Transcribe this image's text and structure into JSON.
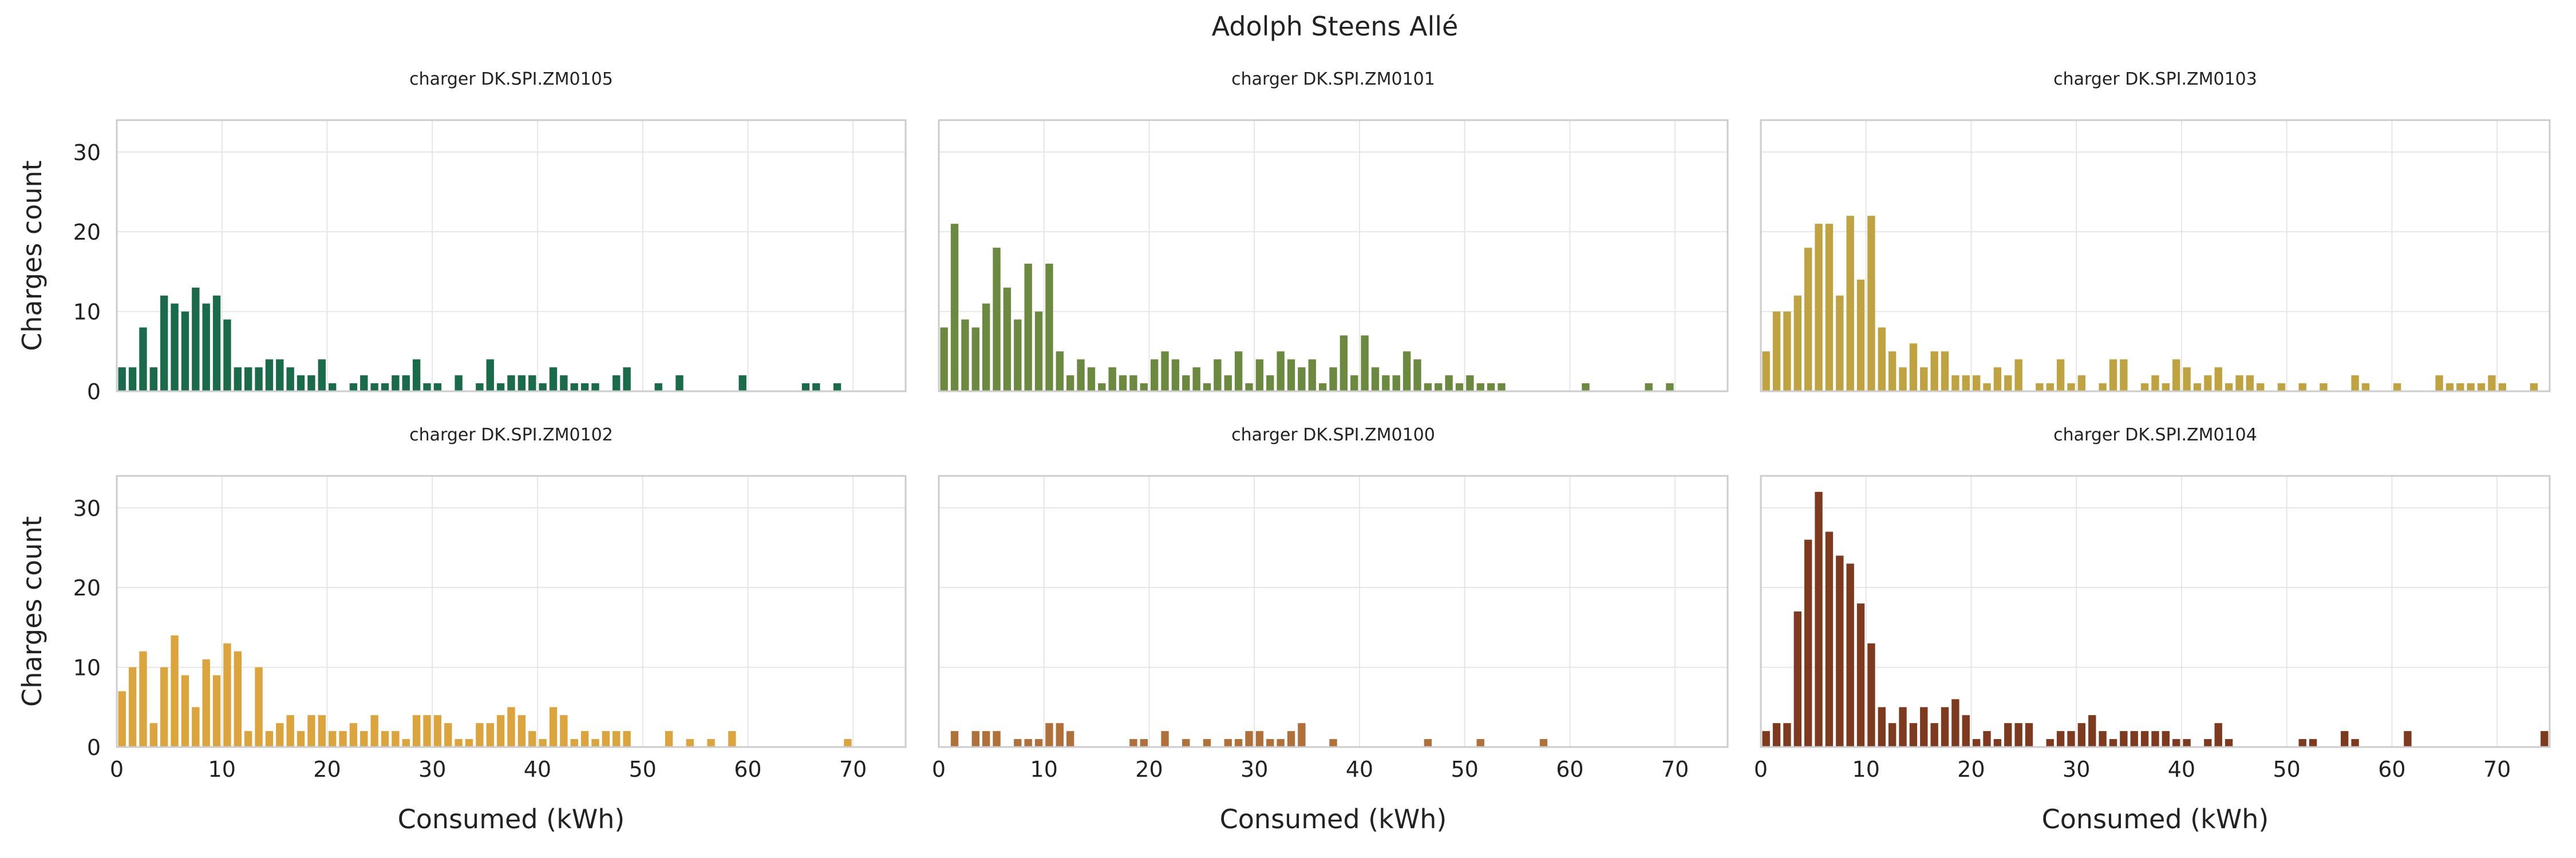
{
  "figure": {
    "title": "Adolph Steens Allé"
  },
  "axis_common": {
    "xlabel": "Consumed (kWh)",
    "ylabel": "Charges count",
    "xlim": [
      0,
      75
    ],
    "ylim": [
      0,
      34
    ],
    "xticks": [
      0,
      10,
      20,
      30,
      40,
      50,
      60,
      70
    ],
    "yticks": [
      0,
      10,
      20,
      30
    ],
    "bin_width": 1.0,
    "grid": true
  },
  "chart_data": [
    {
      "type": "bar",
      "title": "charger DK.SPI.ZM0105",
      "color": "#1a6b4c",
      "x": [
        0.5,
        1.5,
        2.5,
        3.5,
        4.5,
        5.5,
        6.5,
        7.5,
        8.5,
        9.5,
        10.5,
        11.5,
        12.5,
        13.5,
        14.5,
        15.5,
        16.5,
        17.5,
        18.5,
        19.5,
        20.5,
        22.5,
        23.5,
        24.5,
        25.5,
        26.5,
        27.5,
        28.5,
        29.5,
        30.5,
        32.5,
        34.5,
        35.5,
        36.5,
        37.5,
        38.5,
        39.5,
        40.5,
        41.5,
        42.5,
        43.5,
        44.5,
        45.5,
        47.5,
        48.5,
        51.5,
        53.5,
        59.5,
        65.5,
        66.5,
        68.5
      ],
      "values": [
        3,
        3,
        8,
        3,
        12,
        11,
        10,
        13,
        11,
        12,
        9,
        3,
        3,
        3,
        4,
        4,
        3,
        2,
        2,
        4,
        1,
        1,
        2,
        1,
        1,
        2,
        2,
        4,
        1,
        1,
        2,
        1,
        4,
        1,
        2,
        2,
        2,
        1,
        3,
        2,
        1,
        1,
        1,
        2,
        3,
        1,
        2,
        2,
        1,
        1,
        1
      ]
    },
    {
      "type": "bar",
      "title": "charger DK.SPI.ZM0101",
      "color": "#6b8a3f",
      "x": [
        0.5,
        1.5,
        2.5,
        3.5,
        4.5,
        5.5,
        6.5,
        7.5,
        8.5,
        9.5,
        10.5,
        11.5,
        12.5,
        13.5,
        14.5,
        15.5,
        16.5,
        17.5,
        18.5,
        19.5,
        20.5,
        21.5,
        22.5,
        23.5,
        24.5,
        25.5,
        26.5,
        27.5,
        28.5,
        29.5,
        30.5,
        31.5,
        32.5,
        33.5,
        34.5,
        35.5,
        36.5,
        37.5,
        38.5,
        39.5,
        40.5,
        41.5,
        42.5,
        43.5,
        44.5,
        45.5,
        46.5,
        47.5,
        48.5,
        49.5,
        50.5,
        51.5,
        52.5,
        53.5,
        61.5,
        67.5,
        69.5
      ],
      "values": [
        8,
        21,
        9,
        8,
        11,
        18,
        13,
        9,
        16,
        10,
        16,
        5,
        2,
        4,
        3,
        1,
        3,
        2,
        2,
        1,
        4,
        5,
        4,
        2,
        3,
        1,
        4,
        2,
        5,
        1,
        4,
        2,
        5,
        4,
        3,
        4,
        1,
        3,
        7,
        2,
        7,
        3,
        2,
        2,
        5,
        4,
        1,
        1,
        2,
        1,
        2,
        1,
        1,
        1,
        1,
        1,
        1
      ]
    },
    {
      "type": "bar",
      "title": "charger DK.SPI.ZM0103",
      "color": "#c0a341",
      "x": [
        0.5,
        1.5,
        2.5,
        3.5,
        4.5,
        5.5,
        6.5,
        7.5,
        8.5,
        9.5,
        10.5,
        11.5,
        12.5,
        13.5,
        14.5,
        15.5,
        16.5,
        17.5,
        18.5,
        19.5,
        20.5,
        21.5,
        22.5,
        23.5,
        24.5,
        25.5,
        26.5,
        27.5,
        28.5,
        29.5,
        30.5,
        31.5,
        32.5,
        33.5,
        34.5,
        35.5,
        36.5,
        37.5,
        38.5,
        39.5,
        40.5,
        41.5,
        42.5,
        43.5,
        44.5,
        45.5,
        46.5,
        47.5,
        48.5,
        49.5,
        50.5,
        51.5,
        52.5,
        53.5,
        54.5,
        55.5,
        56.5,
        57.5,
        58.5,
        59.5,
        60.5,
        61.5,
        62.5,
        63.5,
        64.5,
        65.5,
        66.5,
        67.5,
        68.5,
        69.5,
        70.5,
        71.5,
        72.5,
        73.5
      ],
      "values": [
        5,
        10,
        10,
        12,
        18,
        21,
        21,
        12,
        22,
        14,
        22,
        8,
        5,
        3,
        6,
        3,
        5,
        5,
        2,
        2,
        2,
        1,
        3,
        2,
        4,
        0,
        1,
        1,
        4,
        1,
        2,
        0,
        1,
        4,
        4,
        0,
        1,
        2,
        1,
        4,
        3,
        1,
        2,
        3,
        1,
        2,
        2,
        1,
        0,
        1,
        0,
        1,
        0,
        1,
        0,
        0,
        2,
        1,
        0,
        0,
        1,
        0,
        0,
        0,
        2,
        1,
        1,
        1,
        1,
        2,
        1,
        0,
        0,
        1
      ]
    },
    {
      "type": "bar",
      "title": "charger DK.SPI.ZM0102",
      "color": "#dba43c",
      "x": [
        0.5,
        1.5,
        2.5,
        3.5,
        4.5,
        5.5,
        6.5,
        7.5,
        8.5,
        9.5,
        10.5,
        11.5,
        12.5,
        13.5,
        14.5,
        15.5,
        16.5,
        17.5,
        18.5,
        19.5,
        20.5,
        21.5,
        22.5,
        23.5,
        24.5,
        25.5,
        26.5,
        27.5,
        28.5,
        29.5,
        30.5,
        31.5,
        32.5,
        33.5,
        34.5,
        35.5,
        36.5,
        37.5,
        38.5,
        39.5,
        40.5,
        41.5,
        42.5,
        43.5,
        44.5,
        45.5,
        46.5,
        47.5,
        48.5,
        52.5,
        54.5,
        56.5,
        58.5,
        69.5
      ],
      "values": [
        7,
        10,
        12,
        3,
        10,
        14,
        9,
        5,
        11,
        9,
        13,
        12,
        2,
        10,
        2,
        3,
        4,
        2,
        4,
        4,
        2,
        2,
        3,
        2,
        4,
        2,
        2,
        1,
        4,
        4,
        4,
        3,
        1,
        1,
        3,
        3,
        4,
        5,
        4,
        2,
        1,
        5,
        4,
        1,
        2,
        1,
        2,
        2,
        2,
        2,
        1,
        1,
        2,
        1
      ]
    },
    {
      "type": "bar",
      "title": "charger DK.SPI.ZM0100",
      "color": "#b0703a",
      "x": [
        1.5,
        3.5,
        4.5,
        5.5,
        7.5,
        8.5,
        9.5,
        10.5,
        11.5,
        12.5,
        18.5,
        19.5,
        21.5,
        23.5,
        25.5,
        27.5,
        28.5,
        29.5,
        30.5,
        31.5,
        32.5,
        33.5,
        34.5,
        37.5,
        46.5,
        51.5,
        57.5
      ],
      "values": [
        2,
        2,
        2,
        2,
        1,
        1,
        1,
        3,
        3,
        2,
        1,
        1,
        2,
        1,
        1,
        1,
        1,
        2,
        2,
        1,
        1,
        2,
        3,
        1,
        1,
        1,
        1
      ]
    },
    {
      "type": "bar",
      "title": "charger DK.SPI.ZM0104",
      "color": "#7e3a1f",
      "x": [
        0.5,
        1.5,
        2.5,
        3.5,
        4.5,
        5.5,
        6.5,
        7.5,
        8.5,
        9.5,
        10.5,
        11.5,
        12.5,
        13.5,
        14.5,
        15.5,
        16.5,
        17.5,
        18.5,
        19.5,
        20.5,
        21.5,
        22.5,
        23.5,
        24.5,
        25.5,
        26.5,
        27.5,
        28.5,
        29.5,
        30.5,
        31.5,
        32.5,
        33.5,
        34.5,
        35.5,
        36.5,
        37.5,
        38.5,
        39.5,
        40.5,
        41.5,
        42.5,
        43.5,
        44.5,
        45.5,
        46.5,
        47.5,
        48.5,
        49.5,
        50.5,
        51.5,
        52.5,
        53.5,
        54.5,
        55.5,
        56.5,
        57.5,
        58.5,
        59.5,
        60.5,
        61.5,
        62.5,
        63.5,
        64.5,
        65.5,
        66.5,
        67.5,
        68.5,
        69.5,
        70.5,
        71.5,
        72.5,
        73.5,
        74.5
      ],
      "values": [
        2,
        3,
        3,
        17,
        26,
        32,
        27,
        24,
        23,
        18,
        13,
        5,
        3,
        5,
        3,
        5,
        3,
        5,
        6,
        4,
        1,
        2,
        1,
        3,
        3,
        3,
        0,
        1,
        2,
        2,
        3,
        4,
        2,
        1,
        2,
        2,
        2,
        2,
        2,
        1,
        1,
        0,
        1,
        3,
        1,
        0,
        0,
        0,
        0,
        0,
        0,
        1,
        1,
        0,
        0,
        2,
        1,
        0,
        0,
        0,
        0,
        2,
        0,
        0,
        0,
        0,
        0,
        0,
        0,
        0,
        0,
        0,
        0,
        0,
        2
      ]
    }
  ]
}
